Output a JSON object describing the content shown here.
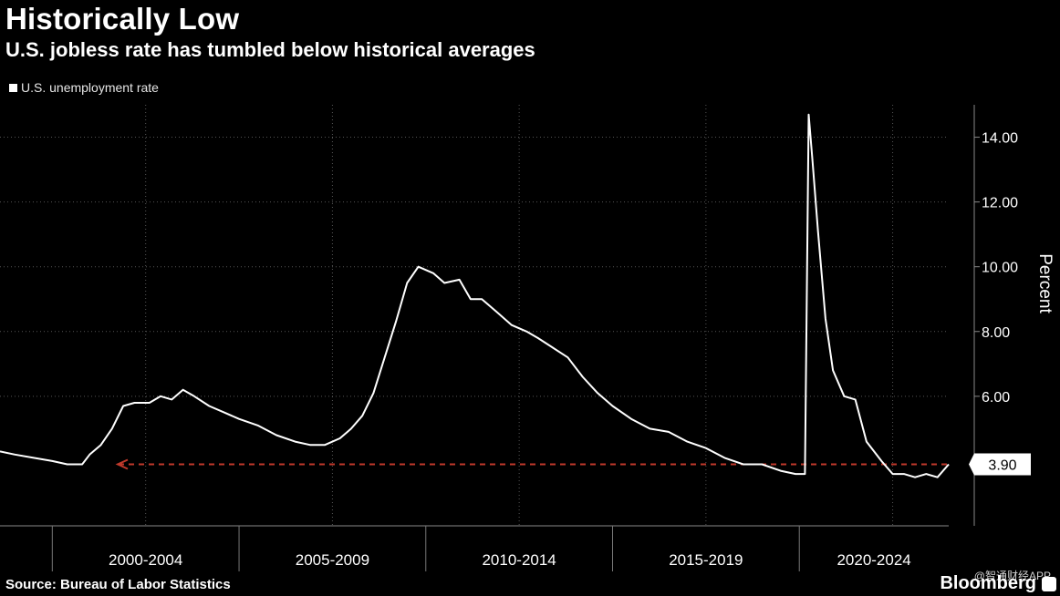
{
  "header": {
    "title": "Historically Low",
    "subtitle": "U.S. jobless rate has tumbled below historical averages"
  },
  "legend": {
    "label": "U.S. unemployment rate"
  },
  "footer": {
    "source": "Source: Bureau of Labor Statistics",
    "brand": "Bloomberg",
    "watermark": "@智通财经APP"
  },
  "colors": {
    "background": "#000000",
    "line": "#ffffff",
    "reference": "#c0392b",
    "grid": "#555555"
  },
  "chart_data": {
    "type": "line",
    "title": "Historically Low",
    "subtitle": "U.S. jobless rate has tumbled below historical averages",
    "ylabel": "Percent",
    "xlabel": "",
    "ylim": [
      2.0,
      15.0
    ],
    "xlim": [
      1998.6,
      2024.0
    ],
    "yticks": [
      6.0,
      8.0,
      10.0,
      12.0,
      14.0
    ],
    "ytick_labels": [
      "6.00",
      "8.00",
      "10.00",
      "12.00",
      "14.00"
    ],
    "x_period_labels": [
      "2000-2004",
      "2005-2009",
      "2010-2014",
      "2015-2019",
      "2020-2024"
    ],
    "x_period_boundaries": [
      2000.0,
      2005.0,
      2010.0,
      2015.0,
      2020.0
    ],
    "series": [
      {
        "name": "U.S. unemployment rate",
        "x": [
          1998.6,
          1999.0,
          1999.5,
          2000.0,
          2000.4,
          2000.8,
          2001.0,
          2001.3,
          2001.6,
          2001.9,
          2002.2,
          2002.6,
          2002.9,
          2003.2,
          2003.5,
          2003.8,
          2004.2,
          2004.6,
          2005.0,
          2005.5,
          2006.0,
          2006.5,
          2006.9,
          2007.3,
          2007.7,
          2008.0,
          2008.3,
          2008.6,
          2008.9,
          2009.2,
          2009.5,
          2009.8,
          2010.2,
          2010.5,
          2010.9,
          2011.2,
          2011.5,
          2011.9,
          2012.3,
          2012.7,
          2013.0,
          2013.4,
          2013.8,
          2014.2,
          2014.6,
          2015.0,
          2015.5,
          2016.0,
          2016.5,
          2017.0,
          2017.5,
          2018.0,
          2018.5,
          2019.0,
          2019.5,
          2019.9,
          2020.15,
          2020.25,
          2020.35,
          2020.5,
          2020.7,
          2020.9,
          2021.2,
          2021.5,
          2021.8,
          2022.2,
          2022.5,
          2022.8,
          2023.1,
          2023.4,
          2023.7,
          2024.0
        ],
        "values": [
          4.3,
          4.2,
          4.1,
          4.0,
          3.9,
          3.9,
          4.2,
          4.5,
          5.0,
          5.7,
          5.8,
          5.8,
          6.0,
          5.9,
          6.2,
          6.0,
          5.7,
          5.5,
          5.3,
          5.1,
          4.8,
          4.6,
          4.5,
          4.5,
          4.7,
          5.0,
          5.4,
          6.1,
          7.2,
          8.3,
          9.5,
          10.0,
          9.8,
          9.5,
          9.6,
          9.0,
          9.0,
          8.6,
          8.2,
          8.0,
          7.8,
          7.5,
          7.2,
          6.6,
          6.1,
          5.7,
          5.3,
          5.0,
          4.9,
          4.6,
          4.4,
          4.1,
          3.9,
          3.9,
          3.7,
          3.6,
          3.6,
          14.7,
          13.3,
          11.1,
          8.4,
          6.8,
          6.0,
          5.9,
          4.6,
          4.0,
          3.6,
          3.6,
          3.5,
          3.6,
          3.5,
          3.9
        ]
      }
    ],
    "reference_line": {
      "value": 3.9,
      "label": "3.90",
      "style": "dashed",
      "arrow": "left"
    }
  }
}
